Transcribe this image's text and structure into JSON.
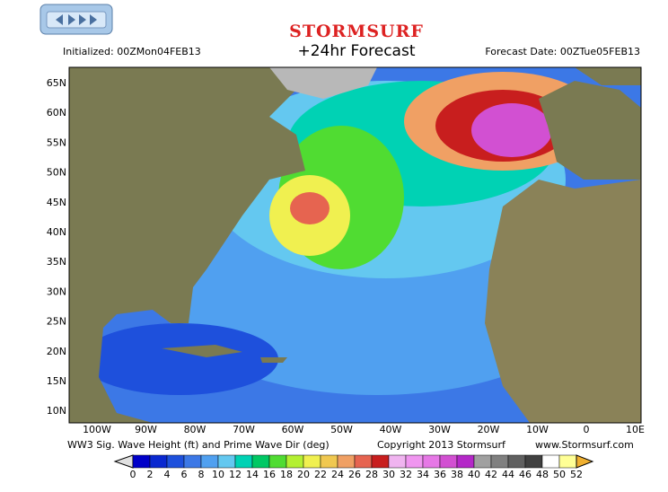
{
  "header": {
    "logo": "STORMSURF",
    "title": "+24hr Forecast",
    "initialized": "Initialized: 00ZMon04FEB13",
    "forecast_date": "Forecast Date: 00ZTue05FEB13"
  },
  "map": {
    "lat_labels": [
      "65N",
      "60N",
      "55N",
      "50N",
      "45N",
      "40N",
      "35N",
      "30N",
      "25N",
      "20N",
      "15N",
      "10N"
    ],
    "lon_labels": [
      "100W",
      "90W",
      "80W",
      "70W",
      "60W",
      "50W",
      "40W",
      "30W",
      "20W",
      "10W",
      "0",
      "10E"
    ]
  },
  "footer": {
    "description": "WW3 Sig. Wave Height (ft) and Prime Wave Dir (deg)",
    "copyright": "Copyright 2013 Stormsurf",
    "website": "www.Stormsurf.com"
  },
  "colorbar": {
    "ticks": [
      0,
      2,
      4,
      6,
      8,
      10,
      12,
      14,
      16,
      18,
      20,
      22,
      24,
      26,
      28,
      30,
      32,
      34,
      36,
      38,
      40,
      42,
      44,
      46,
      48,
      50,
      52
    ],
    "colors": [
      "#0000c8",
      "#0a28d0",
      "#1e50dc",
      "#3c78e6",
      "#50a0f0",
      "#64c8f0",
      "#00d2b4",
      "#00c864",
      "#50dc32",
      "#b4f032",
      "#f0f050",
      "#f0c850",
      "#f0a064",
      "#e66450",
      "#c81e1e",
      "#f0b4f0",
      "#f096f0",
      "#e678e6",
      "#d250d2",
      "#b428c8",
      "#a0a0a0",
      "#808080",
      "#606060",
      "#404040",
      "#ffffff",
      "#ffff96"
    ]
  }
}
